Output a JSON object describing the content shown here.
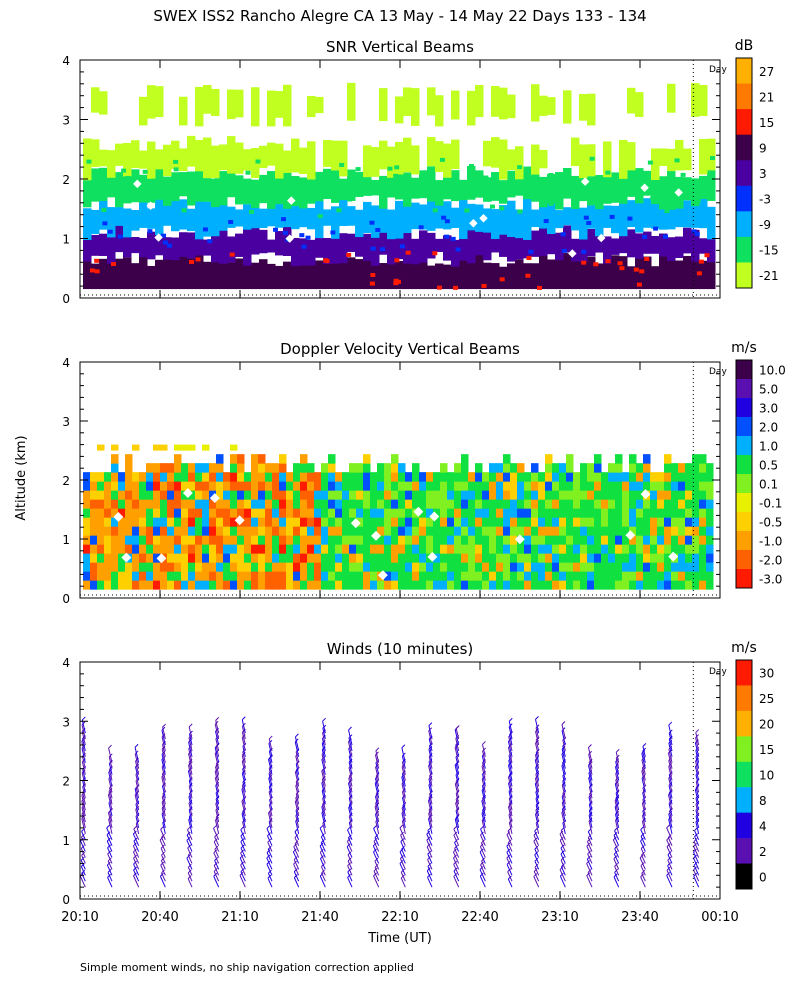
{
  "page": {
    "title": "SWEX ISS2 Rancho Alegre CA  13 May - 14 May 22 Days 133 - 134",
    "ylabel": "Altitude (km)",
    "xlabel": "Time (UT)",
    "footnote": "Simple moment winds, no ship navigation correction applied"
  },
  "chart_data": [
    {
      "type": "heatmap",
      "title": "SNR Vertical Beams",
      "xlabel": "Time (UT)",
      "ylabel": "Altitude (km)",
      "xticks": [
        "20:10",
        "20:40",
        "21:10",
        "21:40",
        "22:10",
        "22:40",
        "23:10",
        "23:40",
        "00:10"
      ],
      "x_range_minutes": [
        0,
        240
      ],
      "ylim": [
        0,
        4
      ],
      "yticks": [
        "0",
        "1",
        "2",
        "3",
        "4"
      ],
      "day_marker": {
        "label": "Day",
        "time_minutes": 230
      },
      "colorbar": {
        "unit": "dB",
        "labels": [
          "27",
          "21",
          "15",
          "9",
          "3",
          "-3",
          "-9",
          "-15",
          "-21"
        ],
        "colors": [
          "#ffb000",
          "#ff7a00",
          "#ff1a00",
          "#3c004a",
          "#4a00a0",
          "#0030ff",
          "#00b0ff",
          "#10e060",
          "#c0ff20"
        ]
      },
      "layers": [
        {
          "from_km": 0.15,
          "to_km": 0.65,
          "level": "9"
        },
        {
          "from_km": 0.65,
          "to_km": 1.1,
          "level": "3"
        },
        {
          "from_km": 1.1,
          "to_km": 1.6,
          "level": "-9"
        },
        {
          "from_km": 1.6,
          "to_km": 2.1,
          "level": "-15"
        },
        {
          "from_km": 2.1,
          "to_km": 2.6,
          "level": "-21"
        },
        {
          "from_km": 3.0,
          "to_km": 3.5,
          "level": "-21"
        }
      ]
    },
    {
      "type": "heatmap",
      "title": "Doppler Velocity Vertical Beams",
      "xlabel": "Time (UT)",
      "ylabel": "Altitude (km)",
      "ylim": [
        0,
        4
      ],
      "yticks": [
        "0",
        "1",
        "2",
        "3",
        "4"
      ],
      "day_marker": {
        "label": "Day",
        "time_minutes": 230
      },
      "colorbar": {
        "unit": "m/s",
        "labels": [
          "10.0",
          "5.0",
          "3.0",
          "2.0",
          "1.0",
          "0.5",
          "0.1",
          "-0.1",
          "-0.5",
          "-1.0",
          "-2.0",
          "-3.0"
        ],
        "colors": [
          "#3c004a",
          "#5a10b0",
          "#2000e0",
          "#0050ff",
          "#00b0ff",
          "#10e040",
          "#80f020",
          "#e8f000",
          "#ffd000",
          "#ffa000",
          "#ff6000",
          "#ff1a00"
        ]
      },
      "dominant_range": {
        "from_km": 0.15,
        "to_km": 2.3,
        "levels": [
          "-2.0",
          "-1.0",
          "-0.5",
          "0.5",
          "1.0"
        ]
      }
    },
    {
      "type": "wind_barbs",
      "title": "Winds (10 minutes)",
      "xlabel": "Time (UT)",
      "ylabel": "Altitude (km)",
      "ylim": [
        0,
        4
      ],
      "yticks": [
        "0",
        "1",
        "2",
        "3",
        "4"
      ],
      "xticks": [
        "20:10",
        "20:40",
        "21:10",
        "21:40",
        "22:10",
        "22:40",
        "23:10",
        "23:40",
        "00:10"
      ],
      "interval_minutes": 10,
      "day_marker": {
        "label": "Day",
        "time_minutes": 230
      },
      "colorbar": {
        "unit": "m/s",
        "labels": [
          "30",
          "25",
          "20",
          "15",
          "10",
          "8",
          "4",
          "2",
          "0"
        ],
        "colors": [
          "#ff1a00",
          "#ff7a00",
          "#ffb000",
          "#80f020",
          "#10e060",
          "#00b0ff",
          "#2000e0",
          "#5a10b0",
          "#000000"
        ]
      },
      "typical_speed_range": [
        "2",
        "8"
      ]
    }
  ]
}
